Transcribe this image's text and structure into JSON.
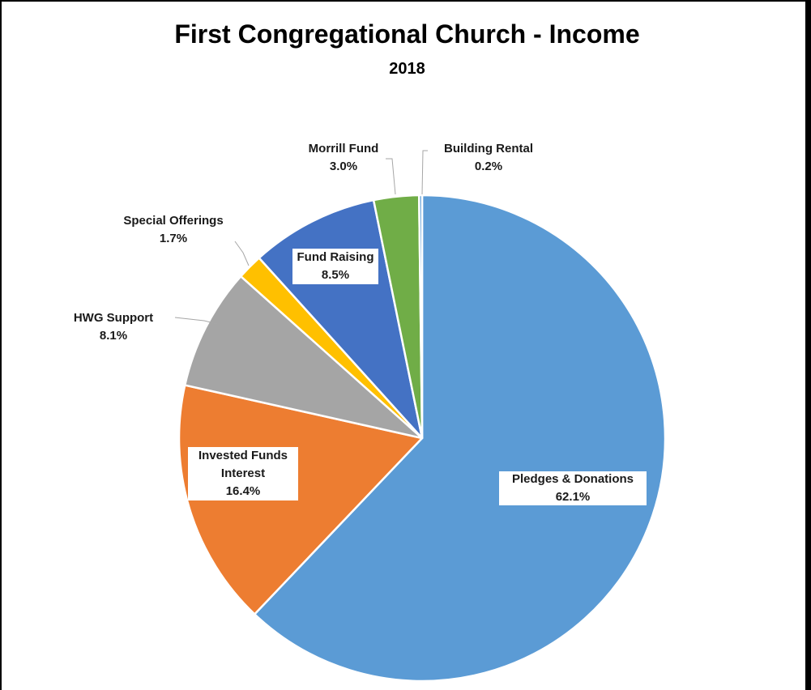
{
  "chart_data": {
    "type": "pie",
    "title": "First Congregational Church - Income",
    "subtitle": "2018",
    "slices": [
      {
        "name": "Pledges & Donations",
        "value": 62.1,
        "pct_label": "62.1%",
        "color": "#5B9BD5",
        "label_lines": [
          "Pledges & Donations"
        ]
      },
      {
        "name": "Invested Funds Interest",
        "value": 16.4,
        "pct_label": "16.4%",
        "color": "#ED7D31",
        "label_lines": [
          "Invested Funds",
          "Interest"
        ]
      },
      {
        "name": "HWG Support",
        "value": 8.1,
        "pct_label": "8.1%",
        "color": "#A5A5A5",
        "label_lines": [
          "HWG Support"
        ]
      },
      {
        "name": "Special Offerings",
        "value": 1.7,
        "pct_label": "1.7%",
        "color": "#FFC000",
        "label_lines": [
          "Special Offerings"
        ]
      },
      {
        "name": "Fund Raising",
        "value": 8.5,
        "pct_label": "8.5%",
        "color": "#4472C4",
        "label_lines": [
          "Fund Raising"
        ]
      },
      {
        "name": "Morrill Fund",
        "value": 3.0,
        "pct_label": "3.0%",
        "color": "#70AD47",
        "label_lines": [
          "Morrill Fund"
        ]
      },
      {
        "name": "Building Rental",
        "value": 0.2,
        "pct_label": "0.2%",
        "color": "#5B9BD5",
        "label_lines": [
          "Building Rental"
        ]
      }
    ]
  }
}
